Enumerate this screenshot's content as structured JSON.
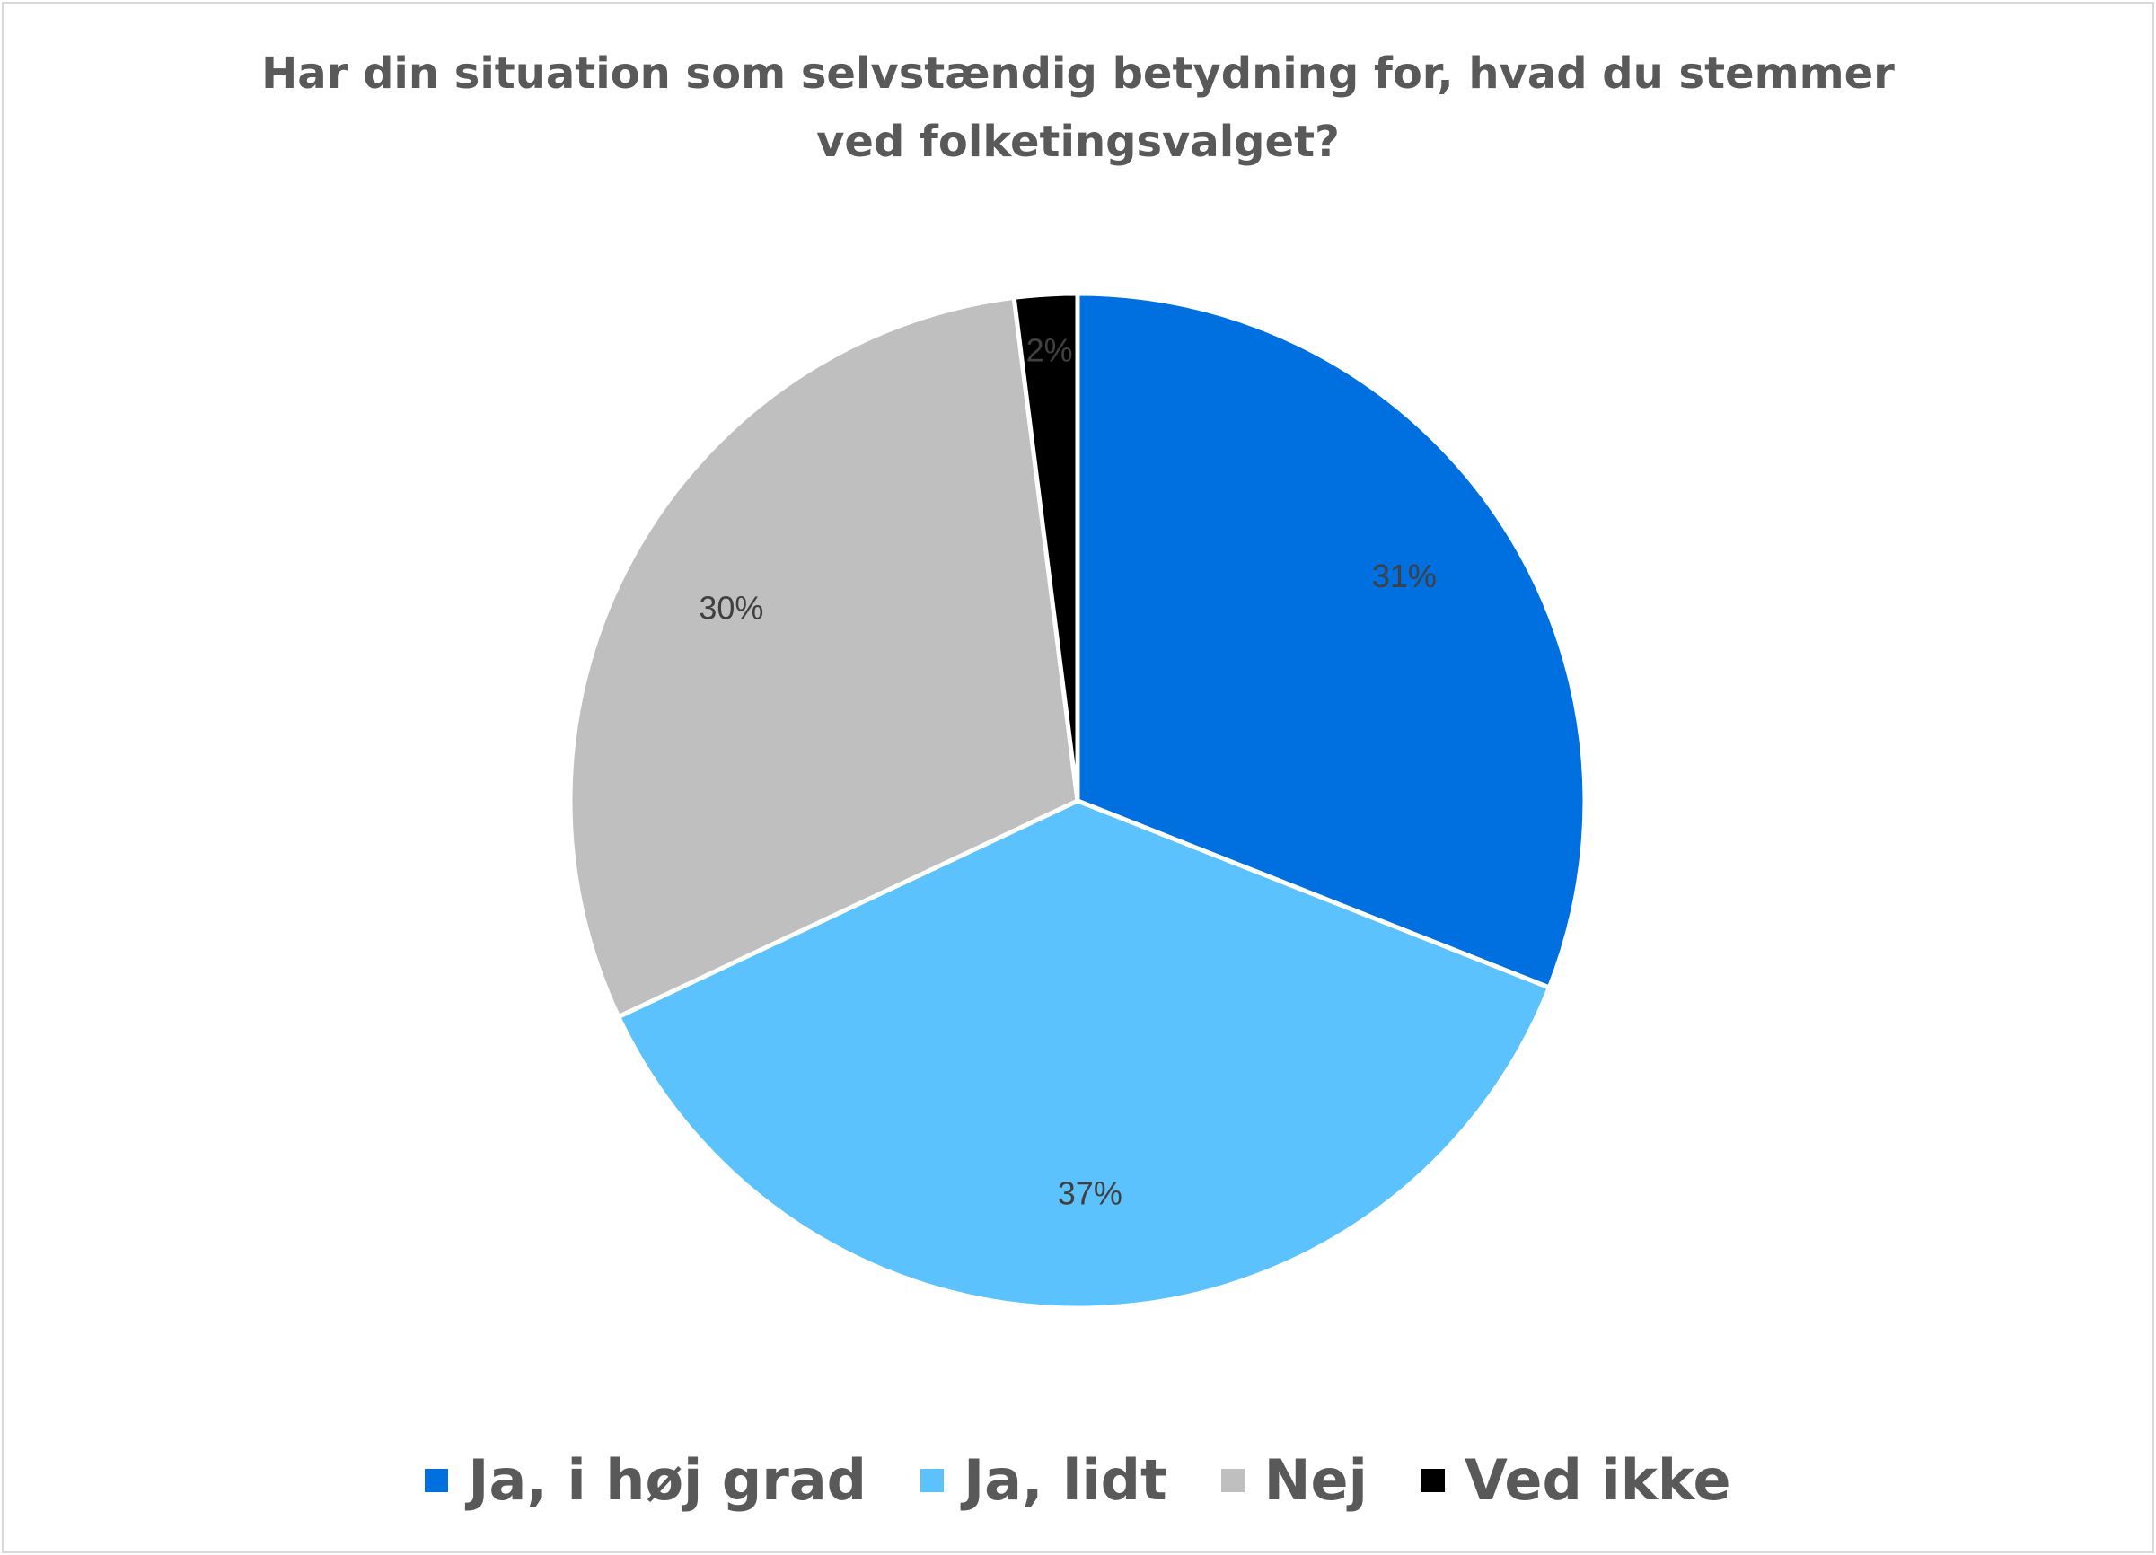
{
  "chart_data": {
    "type": "pie",
    "title_lines": [
      "Har din situation som selvstændig betydning for, hvad du stemmer",
      "ved folketingsvalget?"
    ],
    "slices": [
      {
        "label": "Ja, i høj grad",
        "value": 31,
        "value_label": "31%",
        "color": "#006fe0"
      },
      {
        "label": "Ja, lidt",
        "value": 37,
        "value_label": "37%",
        "color": "#5bc2fd"
      },
      {
        "label": "Nej",
        "value": 30,
        "value_label": "30%",
        "color": "#bfbfbf"
      },
      {
        "label": "Ved ikke",
        "value": 2,
        "value_label": "2%",
        "color": "#000000"
      }
    ],
    "start_angle": "12 o'clock",
    "direction": "clockwise",
    "legend_position": "bottom"
  }
}
